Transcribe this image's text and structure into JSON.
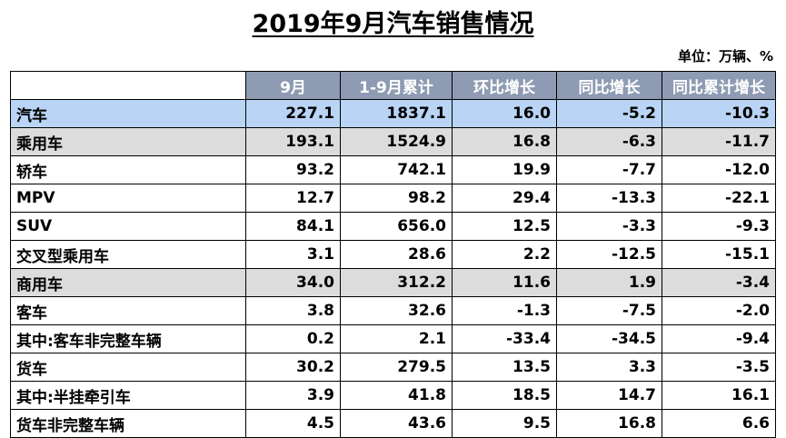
{
  "title": "2019年9月汽车销售情况",
  "unit": "单位：万辆、%",
  "columns": [
    "",
    "9月",
    "1-9月累计",
    "环比增长",
    "同比增长",
    "同比累计增长"
  ],
  "rows": [
    {
      "label": "汽车",
      "values": [
        "227.1",
        "1837.1",
        "16.0",
        "-5.2",
        "-10.3"
      ]
    },
    {
      "label": "乘用车",
      "values": [
        "193.1",
        "1524.9",
        "16.8",
        "-6.3",
        "-11.7"
      ]
    },
    {
      "label": "轿车",
      "values": [
        "93.2",
        "742.1",
        "19.9",
        "-7.7",
        "-12.0"
      ]
    },
    {
      "label": "MPV",
      "values": [
        "12.7",
        "98.2",
        "29.4",
        "-13.3",
        "-22.1"
      ]
    },
    {
      "label": "SUV",
      "values": [
        "84.1",
        "656.0",
        "12.5",
        "-3.3",
        "-9.3"
      ]
    },
    {
      "label": "交叉型乘用车",
      "values": [
        "3.1",
        "28.6",
        "2.2",
        "-12.5",
        "-15.1"
      ]
    },
    {
      "label": "商用车",
      "values": [
        "34.0",
        "312.2",
        "11.6",
        "1.9",
        "-3.4"
      ]
    },
    {
      "label": "客车",
      "values": [
        "3.8",
        "32.6",
        "-1.3",
        "-7.5",
        "-2.0"
      ]
    },
    {
      "label": "其中:客车非完整车辆",
      "values": [
        "0.2",
        "2.1",
        "-33.4",
        "-34.5",
        "-9.4"
      ]
    },
    {
      "label": "货车",
      "values": [
        "30.2",
        "279.5",
        "13.5",
        "3.3",
        "-3.5"
      ]
    },
    {
      "label": "其中:半挂牵引车",
      "values": [
        "3.9",
        "41.8",
        "18.5",
        "14.7",
        "16.1"
      ]
    },
    {
      "label": "货车非完整车辆",
      "values": [
        "4.5",
        "43.6",
        "9.5",
        "16.8",
        "6.6"
      ]
    }
  ],
  "colors": {
    "header_bg": "#8e9bb3",
    "total_row_bg": "#b9d4f4",
    "category_row_bg": "#dcdcdc"
  }
}
